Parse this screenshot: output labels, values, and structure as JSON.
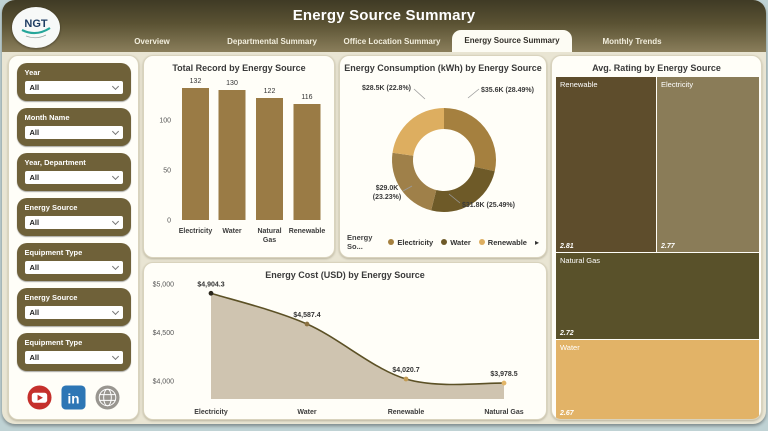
{
  "header": {
    "logo_text": "NGT",
    "title": "Energy Source Summary",
    "tabs": [
      {
        "label": "Overview",
        "active": false
      },
      {
        "label": "Departmental Summary",
        "active": false
      },
      {
        "label": "Office Location Summary",
        "active": false
      },
      {
        "label": "Energy Source Summary",
        "active": true
      },
      {
        "label": "Monthly Trends",
        "active": false
      }
    ]
  },
  "sidebar": {
    "filters": [
      {
        "label": "Year",
        "value": "All"
      },
      {
        "label": "Month Name",
        "value": "All"
      },
      {
        "label": "Year, Department",
        "value": "All"
      },
      {
        "label": "Energy Source",
        "value": "All"
      },
      {
        "label": "Equipment Type",
        "value": "All"
      },
      {
        "label": "Energy Source",
        "value": "All"
      },
      {
        "label": "Equipment Type",
        "value": "All"
      }
    ],
    "social_icons": [
      "youtube-icon",
      "linkedin-icon",
      "globe-icon"
    ]
  },
  "colors": {
    "header_dark": "#3f3a25",
    "header_light": "#8a7e5b",
    "card_bg": "#e9e5d3",
    "panel_bg": "#fffef8",
    "filter_box": "#6f6139",
    "bar": "#9a7b45"
  },
  "chart_data": [
    {
      "type": "bar",
      "title": "Total Record by Energy Source",
      "categories": [
        "Electricity",
        "Water",
        "Natural Gas",
        "Renewable"
      ],
      "values": [
        132,
        130,
        122,
        116
      ],
      "yticks": [
        0,
        50,
        100
      ],
      "ylim": [
        0,
        140
      ],
      "bar_color": "#9a7b45"
    },
    {
      "type": "pie",
      "title": "Energy Consumption (kWh) by Energy Source",
      "slices": [
        {
          "name": "Electricity",
          "label": "$35.6K (28.49%)",
          "pct": 28.49,
          "color": "#a5803f"
        },
        {
          "name": "Water",
          "label": "$31.8K (25.49%)",
          "pct": 25.49,
          "color": "#6e5a28"
        },
        {
          "name": "Natural Gas",
          "label": "$29.0K (23.23%)",
          "pct": 23.23,
          "color": "#9f8049"
        },
        {
          "name": "Renewable",
          "label": "$28.5K (22.8%)",
          "pct": 22.8,
          "color": "#ddae60"
        }
      ],
      "legend": {
        "title": "Energy So...",
        "visible_items": [
          "Electricity",
          "Water",
          "Renewable"
        ],
        "more_arrow": "▸"
      }
    },
    {
      "type": "area",
      "title": "Energy Cost (USD) by Energy Source",
      "categories": [
        "Electricity",
        "Water",
        "Renewable",
        "Natural Gas"
      ],
      "values": [
        4904.3,
        4587.4,
        4020.7,
        3978.5
      ],
      "point_labels": [
        "$4,904.3",
        "$4,587.4",
        "$4,020.7",
        "$3,978.5"
      ],
      "yticks": [
        "$5,000",
        "$4,500",
        "$4,000"
      ],
      "ytick_values": [
        5000,
        4500,
        4000
      ],
      "ylim": [
        3880,
        5040
      ],
      "line_color": "#5c5126",
      "area_color": "#cfc4b0",
      "marker_colors": [
        "#2b271d",
        "#8a7040",
        "#c19b55",
        "#e3b668"
      ]
    },
    {
      "type": "treemap",
      "title": "Avg. Rating by Energy Source",
      "tiles": [
        {
          "name": "Renewable",
          "value": 2.81,
          "color": "#5e4d2c"
        },
        {
          "name": "Electricity",
          "value": 2.77,
          "color": "#8a7c58"
        },
        {
          "name": "Natural Gas",
          "value": 2.72,
          "color": "#59512a"
        },
        {
          "name": "Water",
          "value": 2.67,
          "color": "#e2b367"
        }
      ]
    }
  ]
}
